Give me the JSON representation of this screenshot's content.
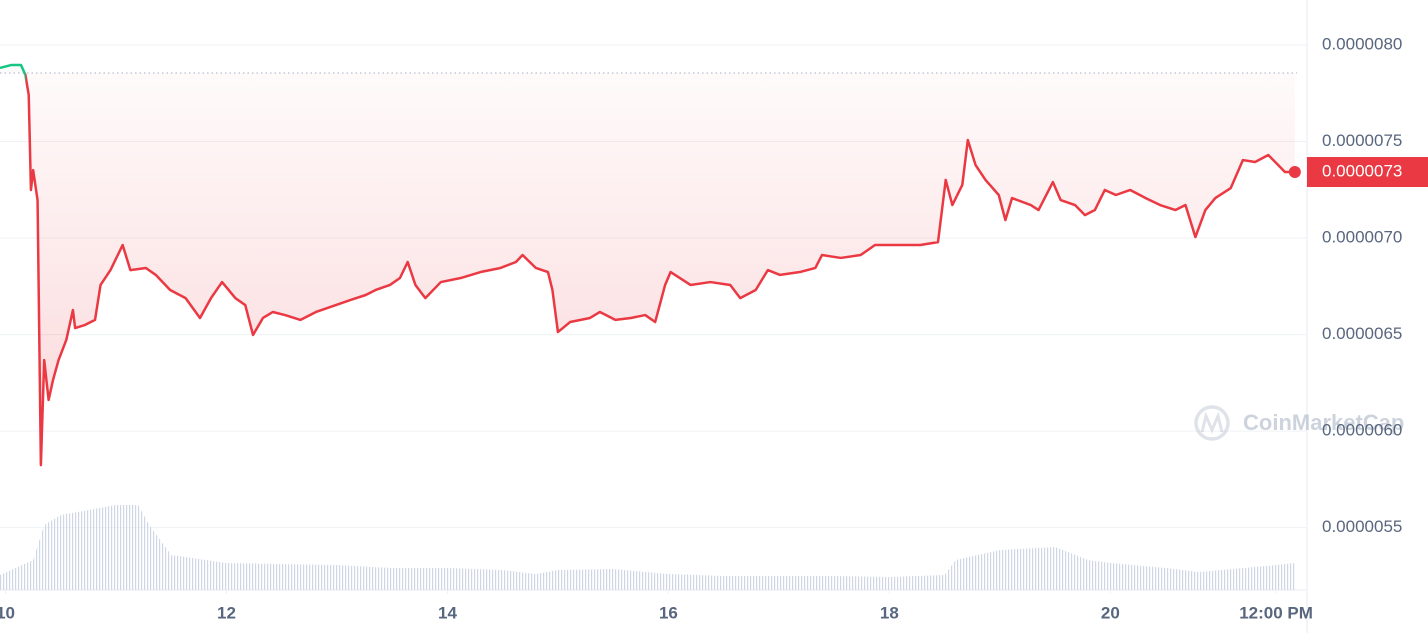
{
  "chart_data": {
    "type": "line",
    "x": [
      9.95,
      10.05,
      10.14,
      10.18,
      10.21,
      10.23,
      10.25,
      10.29,
      10.32,
      10.35,
      10.39,
      10.43,
      10.48,
      10.55,
      10.61,
      10.63,
      10.72,
      10.81,
      10.86,
      10.95,
      11.06,
      11.13,
      11.27,
      11.36,
      11.49,
      11.63,
      11.76,
      11.86,
      11.96,
      12.08,
      12.17,
      12.24,
      12.33,
      12.42,
      12.53,
      12.67,
      12.81,
      12.99,
      13.12,
      13.26,
      13.35,
      13.48,
      13.57,
      13.64,
      13.71,
      13.8,
      13.94,
      14.12,
      14.3,
      14.48,
      14.62,
      14.68,
      14.8,
      14.91,
      14.95,
      15.0,
      15.11,
      15.29,
      15.38,
      15.52,
      15.66,
      15.79,
      15.88,
      15.97,
      16.02,
      16.2,
      16.38,
      16.56,
      16.65,
      16.79,
      16.9,
      17.01,
      17.19,
      17.33,
      17.39,
      17.56,
      17.74,
      17.87,
      18.01,
      18.14,
      18.28,
      18.44,
      18.51,
      18.57,
      18.66,
      18.71,
      18.78,
      18.87,
      18.99,
      19.05,
      19.11,
      19.28,
      19.35,
      19.48,
      19.55,
      19.68,
      19.77,
      19.86,
      19.95,
      20.05,
      20.18,
      20.32,
      20.45,
      20.59,
      20.68,
      20.77,
      20.86,
      20.95,
      21.09,
      21.2,
      21.31,
      21.43,
      21.52,
      21.58,
      21.67
    ],
    "series": [
      {
        "color": "#ea3943",
        "up_color": "#16c784",
        "values": [
          7.881e-06,
          7.896e-06,
          7.896e-06,
          7.845e-06,
          7.741e-06,
          7.249e-06,
          7.352e-06,
          7.197e-06,
          5.824e-06,
          6.368e-06,
          6.161e-06,
          6.265e-06,
          6.368e-06,
          6.472e-06,
          6.627e-06,
          6.534e-06,
          6.55e-06,
          6.576e-06,
          6.757e-06,
          6.834e-06,
          6.964e-06,
          6.834e-06,
          6.845e-06,
          6.809e-06,
          6.731e-06,
          6.689e-06,
          6.586e-06,
          6.689e-06,
          6.772e-06,
          6.689e-06,
          6.653e-06,
          6.498e-06,
          6.586e-06,
          6.617e-06,
          6.601e-06,
          6.576e-06,
          6.617e-06,
          6.653e-06,
          6.679e-06,
          6.705e-06,
          6.731e-06,
          6.757e-06,
          6.793e-06,
          6.876e-06,
          6.757e-06,
          6.689e-06,
          6.772e-06,
          6.793e-06,
          6.824e-06,
          6.845e-06,
          6.876e-06,
          6.912e-06,
          6.845e-06,
          6.824e-06,
          6.731e-06,
          6.513e-06,
          6.565e-06,
          6.586e-06,
          6.617e-06,
          6.576e-06,
          6.586e-06,
          6.601e-06,
          6.565e-06,
          6.757e-06,
          6.824e-06,
          6.757e-06,
          6.772e-06,
          6.757e-06,
          6.689e-06,
          6.731e-06,
          6.834e-06,
          6.809e-06,
          6.824e-06,
          6.845e-06,
          6.912e-06,
          6.897e-06,
          6.912e-06,
          6.964e-06,
          6.964e-06,
          6.964e-06,
          6.964e-06,
          6.979e-06,
          7.301e-06,
          7.171e-06,
          7.275e-06,
          7.508e-06,
          7.378e-06,
          7.301e-06,
          7.223e-06,
          7.093e-06,
          7.207e-06,
          7.171e-06,
          7.145e-06,
          7.29e-06,
          7.197e-06,
          7.171e-06,
          7.119e-06,
          7.145e-06,
          7.249e-06,
          7.223e-06,
          7.249e-06,
          7.207e-06,
          7.171e-06,
          7.145e-06,
          7.171e-06,
          7.005e-06,
          7.145e-06,
          7.207e-06,
          7.259e-06,
          7.404e-06,
          7.394e-06,
          7.43e-06,
          7.378e-06,
          7.342e-06,
          7.342e-06
        ]
      }
    ],
    "volume": {
      "color": "#cfd6e4",
      "x": [
        9.95,
        10.25,
        10.35,
        10.5,
        10.75,
        11.0,
        11.2,
        11.3,
        11.5,
        12.0,
        13.0,
        13.5,
        14.0,
        14.5,
        14.8,
        15.0,
        15.5,
        16.0,
        16.5,
        17.0,
        17.5,
        18.0,
        18.5,
        18.6,
        19.0,
        19.5,
        19.8,
        20.0,
        20.5,
        20.8,
        21.0,
        21.5,
        21.67
      ],
      "values": [
        15,
        30,
        65,
        75,
        80,
        85,
        85,
        65,
        35,
        27,
        25,
        22,
        22,
        20,
        16,
        20,
        21,
        16,
        14,
        14,
        14,
        13,
        15,
        30,
        40,
        43,
        30,
        27,
        22,
        18,
        20,
        25,
        27
      ]
    },
    "reference_line": 7.855e-06,
    "current_price": {
      "value": 7.342e-06,
      "label": "0.0000073"
    },
    "xlim": [
      9.95,
      21.78
    ],
    "xticks": [
      10,
      12,
      14,
      16,
      18,
      20,
      {
        "value": 21.5,
        "label": "12:00 PM"
      }
    ],
    "ylim": [
      5.177e-06,
      8.233e-06
    ],
    "yticks": [
      {
        "value": 8e-06,
        "label": "0.0000080"
      },
      {
        "value": 7.5e-06,
        "label": "0.0000075"
      },
      {
        "value": 7e-06,
        "label": "0.0000070"
      },
      {
        "value": 6.5e-06,
        "label": "0.0000065"
      },
      {
        "value": 6e-06,
        "label": "0.0000060"
      },
      {
        "value": 5.5e-06,
        "label": "0.0000055"
      }
    ],
    "grid": true,
    "watermark": "CoinMarketCap"
  }
}
